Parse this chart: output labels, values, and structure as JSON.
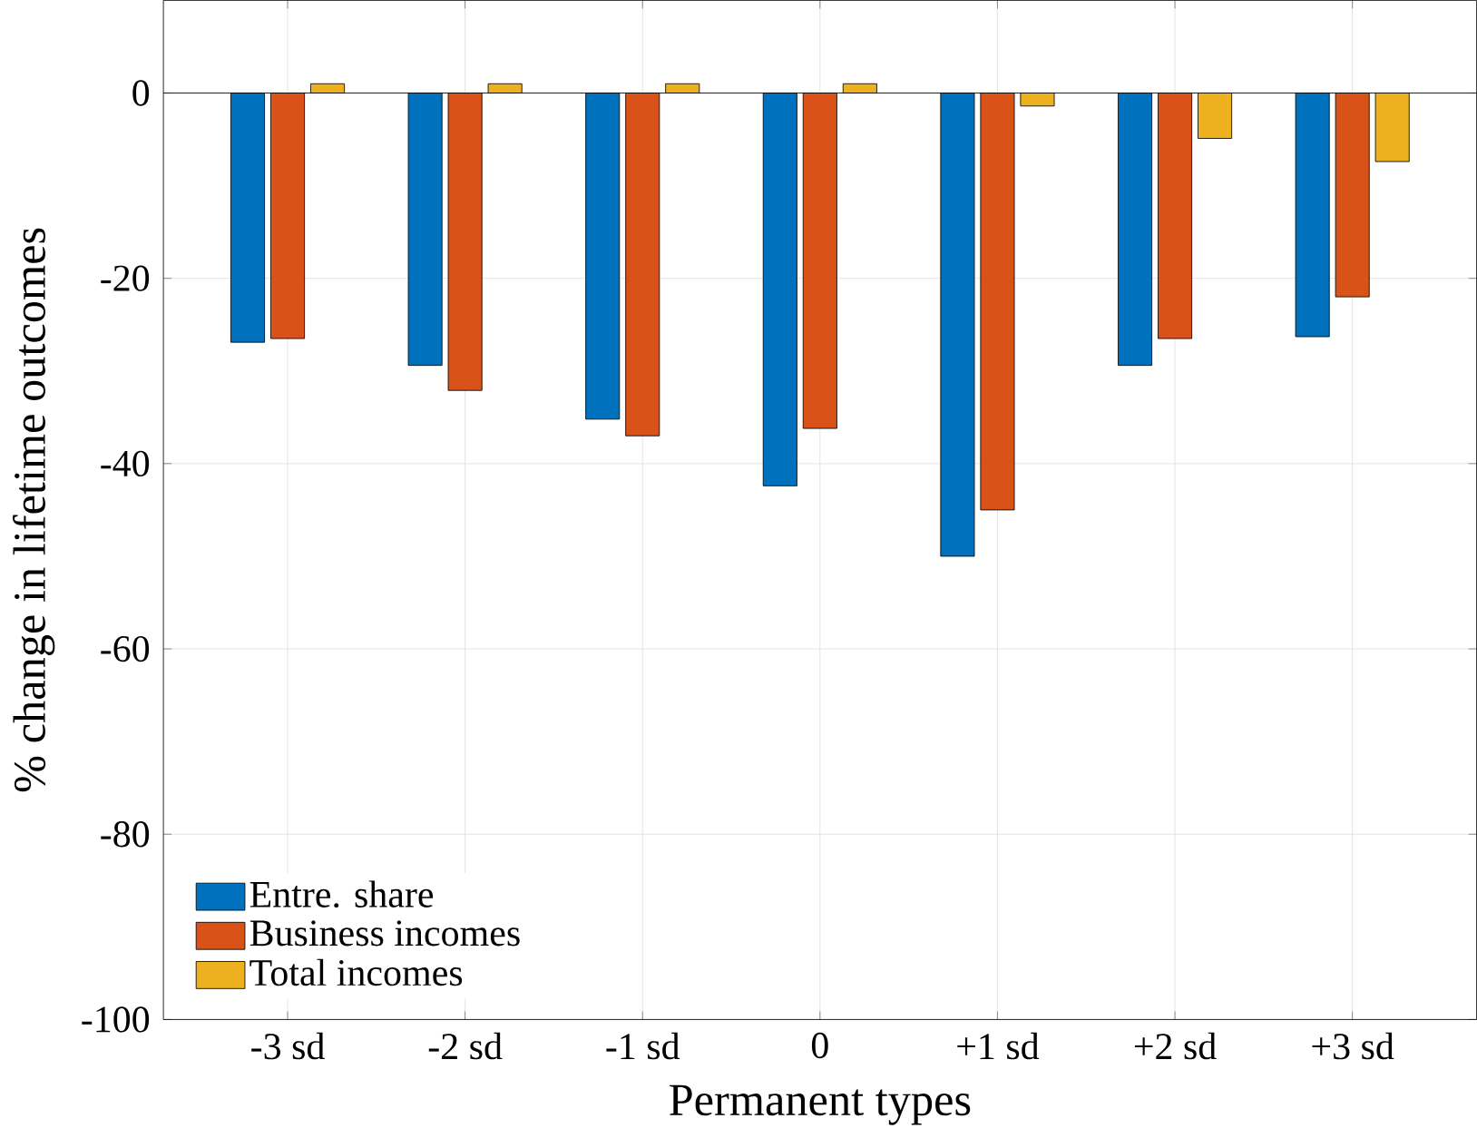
{
  "chart_data": {
    "type": "bar",
    "xlabel": "Permanent types",
    "ylabel": "% change in lifetime outcomes",
    "categories": [
      "-3 sd",
      "-2 sd",
      "-1 sd",
      "0",
      "+1 sd",
      "+2 sd",
      "+3 sd"
    ],
    "series": [
      {
        "name": "Entre. share",
        "color": "#0072bd",
        "values": [
          -26.9,
          -29.4,
          -35.2,
          -42.4,
          -50,
          -29.4,
          -26.3
        ]
      },
      {
        "name": "Business incomes",
        "color": "#d95319",
        "values": [
          -26.5,
          -32.1,
          -37,
          -36.2,
          -45,
          -26.5,
          -22
        ]
      },
      {
        "name": "Total incomes",
        "color": "#edb120",
        "values": [
          1,
          1,
          1,
          1,
          -1.4,
          -4.9,
          -7.4
        ]
      }
    ],
    "ylim": [
      -100,
      10
    ],
    "yticks": [
      -100,
      -80,
      -60,
      -40,
      -20,
      0
    ],
    "grid": true,
    "legend": "bottom left"
  }
}
